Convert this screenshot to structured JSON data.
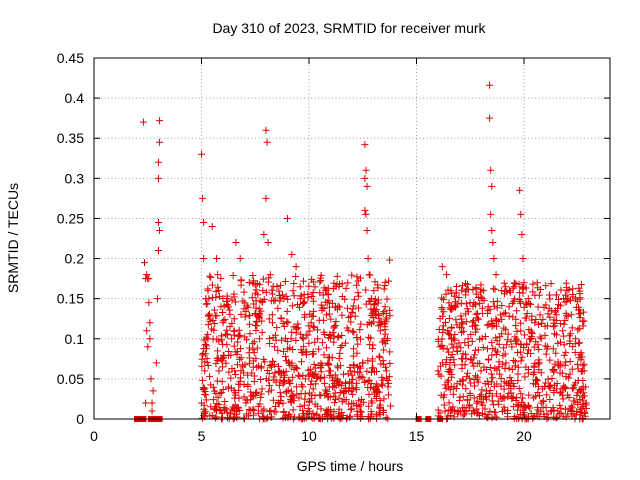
{
  "chart_data": {
    "type": "scatter",
    "title": "Day 310 of 2023, SRMTID for receiver murk",
    "xlabel": "GPS time / hours",
    "ylabel": "SRMTID / TECUs",
    "xlim": [
      0,
      24
    ],
    "ylim": [
      0,
      0.45
    ],
    "grid": true,
    "x_ticks": [
      0,
      5,
      10,
      15,
      20
    ],
    "y_ticks": [
      0,
      0.05,
      0.1,
      0.15,
      0.2,
      0.25,
      0.3,
      0.35,
      0.4,
      0.45
    ],
    "x_tick_labels": [
      "0",
      "5",
      "10",
      "15",
      "20"
    ],
    "y_tick_labels": [
      "0",
      "0.05",
      "0.1",
      "0.15",
      "0.2",
      "0.25",
      "0.3",
      "0.35",
      "0.4",
      "0.45"
    ],
    "marker_color": "#e00000",
    "series": [
      {
        "name": "SRMTID",
        "marker": "plus",
        "points": [
          [
            2.3,
            0.37
          ],
          [
            2.35,
            0.195
          ],
          [
            2.4,
            0.175
          ],
          [
            2.45,
            0.18
          ],
          [
            2.5,
            0.175
          ],
          [
            2.55,
            0.145
          ],
          [
            2.6,
            0.12
          ],
          [
            2.65,
            0.05
          ],
          [
            2.7,
            0.02
          ],
          [
            2.75,
            0.035
          ],
          [
            2.5,
            0.09
          ],
          [
            2.45,
            0.11
          ],
          [
            2.6,
            0.1
          ],
          [
            2.55,
            0.175
          ],
          [
            2.4,
            0.02
          ],
          [
            2.7,
            0.01
          ],
          [
            2.9,
            0.07
          ],
          [
            2.95,
            0.15
          ],
          [
            3.0,
            0.21
          ],
          [
            3.05,
            0.235
          ],
          [
            3.0,
            0.3
          ],
          [
            3.0,
            0.32
          ],
          [
            3.05,
            0.345
          ],
          [
            3.05,
            0.372
          ],
          [
            3.0,
            0.245
          ],
          [
            5.0,
            0.33
          ],
          [
            5.05,
            0.275
          ],
          [
            5.1,
            0.245
          ],
          [
            5.1,
            0.2
          ],
          [
            5.2,
            0.15
          ],
          [
            5.05,
            0.08
          ],
          [
            5.15,
            0.06
          ],
          [
            5.0,
            0.02
          ],
          [
            5.2,
            0.03
          ],
          [
            5.3,
            0.1
          ],
          [
            5.5,
            0.24
          ],
          [
            5.7,
            0.2
          ],
          [
            5.75,
            0.18
          ],
          [
            5.8,
            0.16
          ],
          [
            5.9,
            0.14
          ],
          [
            6.0,
            0.12
          ],
          [
            6.2,
            0.15
          ],
          [
            6.4,
            0.1
          ],
          [
            6.6,
            0.22
          ],
          [
            6.8,
            0.2
          ],
          [
            8.0,
            0.36
          ],
          [
            8.05,
            0.345
          ],
          [
            8.0,
            0.275
          ],
          [
            7.9,
            0.23
          ],
          [
            8.1,
            0.22
          ],
          [
            8.2,
            0.18
          ],
          [
            7.85,
            0.16
          ],
          [
            8.3,
            0.12
          ],
          [
            7.7,
            0.1
          ],
          [
            8.4,
            0.09
          ],
          [
            9.0,
            0.25
          ],
          [
            9.2,
            0.205
          ],
          [
            9.4,
            0.19
          ],
          [
            9.6,
            0.15
          ],
          [
            9.8,
            0.13
          ],
          [
            10.1,
            0.12
          ],
          [
            10.4,
            0.1
          ],
          [
            10.7,
            0.08
          ],
          [
            11.0,
            0.06
          ],
          [
            11.3,
            0.05
          ],
          [
            12.6,
            0.342
          ],
          [
            12.65,
            0.31
          ],
          [
            12.6,
            0.3
          ],
          [
            12.7,
            0.29
          ],
          [
            12.6,
            0.26
          ],
          [
            12.65,
            0.255
          ],
          [
            12.7,
            0.235
          ],
          [
            12.75,
            0.2
          ],
          [
            12.8,
            0.18
          ],
          [
            12.9,
            0.15
          ],
          [
            13.1,
            0.13
          ],
          [
            13.3,
            0.12
          ],
          [
            13.5,
            0.1
          ],
          [
            13.6,
            0.06
          ],
          [
            13.7,
            0.03
          ],
          [
            13.75,
            0.198
          ],
          [
            16.2,
            0.19
          ],
          [
            16.4,
            0.18
          ],
          [
            16.6,
            0.16
          ],
          [
            16.8,
            0.14
          ],
          [
            17.1,
            0.12
          ],
          [
            17.4,
            0.1
          ],
          [
            17.7,
            0.08
          ],
          [
            18.0,
            0.06
          ],
          [
            18.4,
            0.416
          ],
          [
            18.4,
            0.375
          ],
          [
            18.45,
            0.31
          ],
          [
            18.5,
            0.29
          ],
          [
            18.45,
            0.255
          ],
          [
            18.5,
            0.235
          ],
          [
            18.55,
            0.22
          ],
          [
            18.6,
            0.2
          ],
          [
            18.7,
            0.18
          ],
          [
            19.8,
            0.285
          ],
          [
            19.85,
            0.255
          ],
          [
            19.9,
            0.23
          ],
          [
            19.95,
            0.2
          ],
          [
            20.0,
            0.17
          ],
          [
            20.2,
            0.15
          ],
          [
            20.5,
            0.12
          ],
          [
            20.8,
            0.1
          ],
          [
            21.1,
            0.09
          ],
          [
            21.5,
            0.13
          ],
          [
            21.8,
            0.11
          ],
          [
            22.0,
            0.16
          ],
          [
            22.2,
            0.13
          ],
          [
            22.4,
            0.1
          ],
          [
            22.6,
            0.08
          ],
          [
            22.8,
            0.06
          ],
          [
            22.9,
            0.02
          ]
        ]
      }
    ],
    "zero_markers": [
      2.0,
      2.15,
      2.3,
      2.65,
      2.75,
      2.9,
      3.05,
      15.1,
      15.55,
      16.1
    ],
    "dense_bands": [
      {
        "x_start": 5.0,
        "x_end": 13.8,
        "y_low": 0.0,
        "y_high": 0.18,
        "count": 950
      },
      {
        "x_start": 16.0,
        "x_end": 22.9,
        "y_low": 0.0,
        "y_high": 0.17,
        "count": 750
      }
    ]
  }
}
